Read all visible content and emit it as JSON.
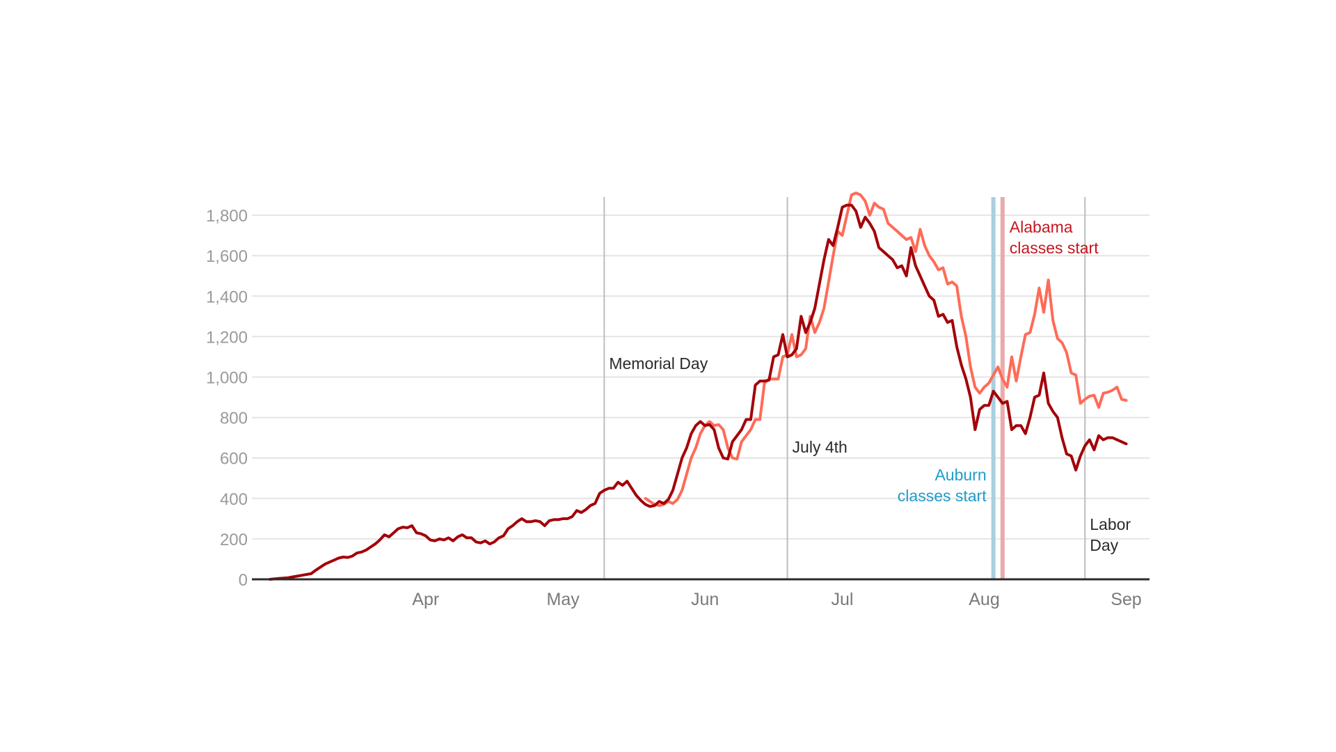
{
  "chart_data": {
    "type": "line",
    "title": "",
    "xlabel": "",
    "ylabel": "",
    "start_date": "2020-03-13",
    "ylim": [
      0,
      1900
    ],
    "y_ticks": [
      0,
      200,
      400,
      600,
      800,
      1000,
      1200,
      1400,
      1600,
      1800
    ],
    "y_tick_labels": [
      "0",
      "200",
      "400",
      "600",
      "800",
      "1,000",
      "1,200",
      "1,400",
      "1,600",
      "1,800"
    ],
    "x_ticks": [
      {
        "label": "Apr",
        "day": 34
      },
      {
        "label": "May",
        "day": 64
      },
      {
        "label": "Jun",
        "day": 95
      },
      {
        "label": "Jul",
        "day": 125
      },
      {
        "label": "Aug",
        "day": 156
      },
      {
        "label": "Sep",
        "day": 187
      }
    ],
    "grid": true,
    "colors": {
      "series_dark": "#a30008",
      "series_light": "#ff6b57",
      "grid": "#e4e4e4",
      "event_line": "#bdbdbd",
      "axis": "#2b2b2b",
      "auburn": "#a9cfe0",
      "alabama": "#eaaaaa",
      "auburn_text": "#1f9cc9",
      "alabama_text": "#c5161d"
    },
    "events": [
      {
        "label_lines": [
          "Memorial Day"
        ],
        "day": 73,
        "style": "event"
      },
      {
        "label_lines": [
          "July 4th"
        ],
        "day": 113,
        "style": "event"
      },
      {
        "label_lines": [
          "Auburn",
          "classes start"
        ],
        "day": 158,
        "style": "auburn"
      },
      {
        "label_lines": [
          "Alabama",
          "classes start"
        ],
        "day": 160,
        "style": "alabama"
      },
      {
        "label_lines": [
          "Labor",
          "Day"
        ],
        "day": 178,
        "style": "event"
      }
    ],
    "series": [
      {
        "name": "dark",
        "start_day": 0,
        "values": [
          0,
          2,
          4,
          6,
          8,
          12,
          16,
          20,
          24,
          28,
          45,
          60,
          75,
          85,
          95,
          105,
          110,
          108,
          115,
          130,
          135,
          145,
          160,
          175,
          195,
          220,
          210,
          230,
          250,
          258,
          255,
          265,
          230,
          225,
          215,
          195,
          190,
          200,
          195,
          205,
          190,
          210,
          220,
          205,
          205,
          185,
          180,
          190,
          175,
          185,
          205,
          215,
          250,
          265,
          285,
          300,
          285,
          285,
          290,
          285,
          265,
          290,
          295,
          295,
          300,
          300,
          310,
          340,
          330,
          345,
          365,
          375,
          425,
          440,
          450,
          450,
          480,
          465,
          485,
          450,
          415,
          390,
          370,
          360,
          365,
          385,
          375,
          395,
          440,
          520,
          600,
          650,
          720,
          760,
          780,
          760,
          765,
          740,
          650,
          600,
          595,
          680,
          710,
          740,
          790,
          790,
          960,
          980,
          980,
          985,
          1100,
          1110,
          1210,
          1100,
          1110,
          1140,
          1300,
          1220,
          1270,
          1340,
          1460,
          1580,
          1680,
          1650,
          1740,
          1840,
          1850,
          1850,
          1820,
          1740,
          1790,
          1760,
          1720,
          1640,
          1620,
          1600,
          1580,
          1540,
          1550,
          1500,
          1640,
          1550,
          1500,
          1450,
          1400,
          1380,
          1300,
          1310,
          1270,
          1280,
          1150,
          1060,
          990,
          900,
          740,
          840,
          860,
          860,
          930,
          900,
          870,
          880,
          740,
          760,
          760,
          720,
          800,
          900,
          910,
          1020,
          870,
          830,
          800,
          700,
          620,
          610,
          540,
          610,
          660,
          690,
          640,
          710,
          690,
          700,
          700,
          690,
          680,
          670
        ]
      },
      {
        "name": "light",
        "start_day": 82,
        "values": [
          400,
          385,
          370,
          365,
          370,
          385,
          375,
          395,
          440,
          520,
          600,
          650,
          720,
          760,
          780,
          760,
          765,
          740,
          650,
          600,
          595,
          680,
          710,
          740,
          790,
          790,
          970,
          990,
          990,
          990,
          1100,
          1110,
          1210,
          1100,
          1110,
          1140,
          1300,
          1220,
          1270,
          1340,
          1470,
          1600,
          1720,
          1700,
          1800,
          1900,
          1910,
          1900,
          1870,
          1800,
          1860,
          1840,
          1830,
          1760,
          1740,
          1720,
          1700,
          1680,
          1690,
          1620,
          1730,
          1650,
          1600,
          1570,
          1530,
          1540,
          1460,
          1470,
          1450,
          1300,
          1200,
          1050,
          950,
          920,
          950,
          970,
          1010,
          1050,
          990,
          950,
          1100,
          980,
          1100,
          1210,
          1220,
          1310,
          1440,
          1320,
          1480,
          1280,
          1190,
          1170,
          1120,
          1020,
          1010,
          870,
          890,
          905,
          910,
          850,
          920,
          925,
          935,
          950,
          890,
          885
        ]
      }
    ]
  }
}
